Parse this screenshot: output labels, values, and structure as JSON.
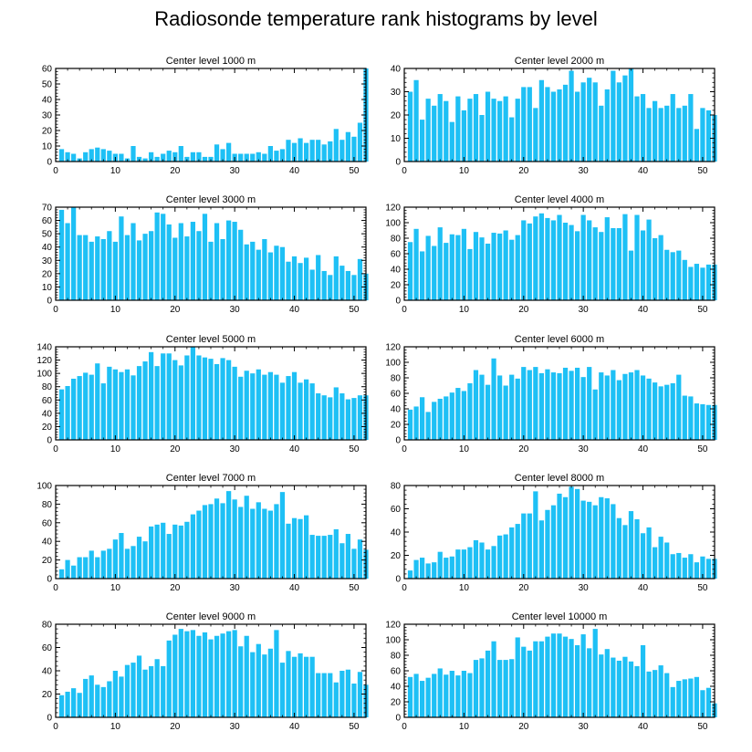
{
  "title": "Radiosonde temperature rank histograms by level",
  "colors": {
    "bar": "#1ec0f5",
    "axis": "#000000",
    "background": "#ffffff"
  },
  "chart_data": [
    {
      "type": "bar",
      "title": "Center level 1000 m",
      "x_start": 1,
      "xlim": [
        0,
        52
      ],
      "ylim": [
        0,
        60
      ],
      "xticks": [
        0,
        10,
        20,
        30,
        40,
        50
      ],
      "yticks": [
        0,
        10,
        20,
        30,
        40,
        50,
        60
      ],
      "values": [
        8,
        6,
        5,
        2,
        6,
        8,
        9,
        8,
        7,
        5,
        5,
        2,
        10,
        3,
        2,
        6,
        3,
        5,
        7,
        6,
        10,
        3,
        6,
        6,
        3,
        3,
        11,
        8,
        12,
        5,
        5,
        5,
        5,
        6,
        5,
        10,
        7,
        8,
        14,
        12,
        15,
        12,
        14,
        14,
        11,
        13,
        21,
        14,
        19,
        16,
        25,
        60
      ]
    },
    {
      "type": "bar",
      "title": "Center level 2000 m",
      "x_start": 1,
      "xlim": [
        0,
        52
      ],
      "ylim": [
        0,
        40
      ],
      "xticks": [
        0,
        10,
        20,
        30,
        40,
        50
      ],
      "yticks": [
        0,
        10,
        20,
        30,
        40
      ],
      "values": [
        30,
        35,
        18,
        27,
        24,
        29,
        26,
        17,
        28,
        22,
        27,
        29,
        20,
        30,
        27,
        26,
        28,
        19,
        27,
        32,
        32,
        23,
        35,
        32,
        30,
        31,
        33,
        39,
        30,
        34,
        36,
        34,
        24,
        31,
        39,
        34,
        37,
        40,
        28,
        29,
        23,
        26,
        23,
        24,
        29,
        23,
        24,
        29,
        14,
        23,
        22,
        20
      ]
    },
    {
      "type": "bar",
      "title": "Center level 3000 m",
      "x_start": 1,
      "xlim": [
        0,
        52
      ],
      "ylim": [
        0,
        70
      ],
      "xticks": [
        0,
        10,
        20,
        30,
        40,
        50
      ],
      "yticks": [
        0,
        10,
        20,
        30,
        40,
        50,
        60,
        70
      ],
      "values": [
        68,
        58,
        70,
        49,
        49,
        44,
        48,
        46,
        52,
        44,
        63,
        49,
        58,
        45,
        50,
        52,
        66,
        65,
        57,
        47,
        58,
        48,
        59,
        52,
        65,
        44,
        58,
        46,
        60,
        59,
        53,
        42,
        44,
        38,
        46,
        36,
        41,
        40,
        29,
        33,
        28,
        32,
        23,
        34,
        22,
        19,
        33,
        26,
        22,
        19,
        31,
        20
      ]
    },
    {
      "type": "bar",
      "title": "Center level 4000 m",
      "x_start": 1,
      "xlim": [
        0,
        52
      ],
      "ylim": [
        0,
        120
      ],
      "xticks": [
        0,
        10,
        20,
        30,
        40,
        50
      ],
      "yticks": [
        0,
        20,
        40,
        60,
        80,
        100,
        120
      ],
      "values": [
        75,
        92,
        63,
        83,
        70,
        94,
        74,
        85,
        84,
        92,
        66,
        88,
        81,
        73,
        87,
        86,
        90,
        78,
        84,
        103,
        99,
        108,
        112,
        106,
        103,
        110,
        100,
        97,
        89,
        110,
        103,
        94,
        88,
        107,
        93,
        93,
        111,
        64,
        110,
        90,
        104,
        80,
        84,
        65,
        62,
        64,
        52,
        43,
        47,
        42,
        46,
        46
      ]
    },
    {
      "type": "bar",
      "title": "Center level 5000 m",
      "x_start": 1,
      "xlim": [
        0,
        52
      ],
      "ylim": [
        0,
        140
      ],
      "xticks": [
        0,
        10,
        20,
        30,
        40,
        50
      ],
      "yticks": [
        0,
        20,
        40,
        60,
        80,
        100,
        120,
        140
      ],
      "values": [
        76,
        81,
        92,
        96,
        101,
        98,
        115,
        85,
        110,
        106,
        102,
        106,
        97,
        111,
        118,
        132,
        111,
        130,
        130,
        120,
        112,
        127,
        140,
        127,
        124,
        122,
        114,
        123,
        120,
        110,
        95,
        104,
        100,
        106,
        98,
        102,
        98,
        86,
        96,
        102,
        86,
        91,
        85,
        70,
        67,
        64,
        79,
        70,
        61,
        63,
        67,
        67
      ]
    },
    {
      "type": "bar",
      "title": "Center level 6000 m",
      "x_start": 1,
      "xlim": [
        0,
        52
      ],
      "ylim": [
        0,
        120
      ],
      "xticks": [
        0,
        10,
        20,
        30,
        40,
        50
      ],
      "yticks": [
        0,
        20,
        40,
        60,
        80,
        100,
        120
      ],
      "values": [
        39,
        43,
        55,
        36,
        49,
        53,
        56,
        61,
        67,
        63,
        73,
        90,
        84,
        71,
        105,
        83,
        70,
        84,
        79,
        94,
        90,
        94,
        86,
        91,
        87,
        86,
        93,
        89,
        93,
        81,
        94,
        65,
        87,
        83,
        90,
        77,
        85,
        87,
        90,
        83,
        79,
        74,
        69,
        71,
        73,
        84,
        57,
        56,
        47,
        46,
        45,
        45
      ]
    },
    {
      "type": "bar",
      "title": "Center level 7000 m",
      "x_start": 1,
      "xlim": [
        0,
        52
      ],
      "ylim": [
        0,
        100
      ],
      "xticks": [
        0,
        10,
        20,
        30,
        40,
        50
      ],
      "yticks": [
        0,
        20,
        40,
        60,
        80,
        100
      ],
      "values": [
        10,
        20,
        14,
        23,
        23,
        30,
        23,
        30,
        32,
        42,
        49,
        32,
        35,
        45,
        40,
        56,
        58,
        60,
        48,
        58,
        57,
        61,
        69,
        73,
        79,
        80,
        86,
        81,
        94,
        85,
        77,
        89,
        75,
        82,
        75,
        73,
        80,
        93,
        59,
        65,
        64,
        68,
        47,
        46,
        46,
        47,
        53,
        38,
        48,
        32,
        42,
        31
      ]
    },
    {
      "type": "bar",
      "title": "Center level 8000 m",
      "x_start": 1,
      "xlim": [
        0,
        52
      ],
      "ylim": [
        0,
        80
      ],
      "xticks": [
        0,
        10,
        20,
        30,
        40,
        50
      ],
      "yticks": [
        0,
        20,
        40,
        60,
        80
      ],
      "values": [
        7,
        16,
        18,
        13,
        14,
        23,
        18,
        19,
        25,
        25,
        27,
        33,
        31,
        25,
        28,
        37,
        38,
        44,
        47,
        56,
        56,
        75,
        50,
        59,
        63,
        73,
        70,
        79,
        77,
        67,
        66,
        63,
        70,
        69,
        64,
        52,
        46,
        58,
        51,
        39,
        44,
        27,
        36,
        31,
        21,
        22,
        18,
        21,
        14,
        19,
        17,
        17
      ]
    },
    {
      "type": "bar",
      "title": "Center level 9000 m",
      "x_start": 1,
      "xlim": [
        0,
        52
      ],
      "ylim": [
        0,
        80
      ],
      "xticks": [
        0,
        10,
        20,
        30,
        40,
        50
      ],
      "yticks": [
        0,
        20,
        40,
        60,
        80
      ],
      "values": [
        19,
        22,
        25,
        21,
        33,
        36,
        28,
        26,
        31,
        40,
        35,
        45,
        47,
        53,
        41,
        44,
        50,
        44,
        66,
        71,
        76,
        74,
        75,
        70,
        73,
        67,
        70,
        72,
        74,
        75,
        61,
        70,
        56,
        63,
        54,
        59,
        75,
        47,
        57,
        52,
        55,
        52,
        52,
        38,
        38,
        38,
        30,
        40,
        41,
        29,
        39,
        28
      ]
    },
    {
      "type": "bar",
      "title": "Center level 10000 m",
      "x_start": 1,
      "xlim": [
        0,
        52
      ],
      "ylim": [
        0,
        120
      ],
      "xticks": [
        0,
        10,
        20,
        30,
        40,
        50
      ],
      "yticks": [
        0,
        20,
        40,
        60,
        80,
        100,
        120
      ],
      "values": [
        52,
        56,
        47,
        51,
        56,
        63,
        55,
        60,
        54,
        60,
        57,
        74,
        76,
        86,
        98,
        74,
        74,
        75,
        103,
        91,
        86,
        98,
        98,
        104,
        108,
        108,
        104,
        101,
        93,
        107,
        89,
        114,
        81,
        88,
        77,
        73,
        78,
        72,
        66,
        93,
        59,
        61,
        67,
        57,
        39,
        47,
        49,
        50,
        52,
        35,
        38,
        18
      ]
    }
  ]
}
